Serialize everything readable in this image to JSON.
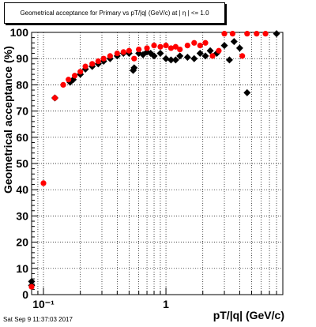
{
  "page": {
    "timestamp": "Sat Sep  9 11:37:03 2017"
  },
  "chart_data": {
    "type": "scatter",
    "title": "Geometrical acceptance for Primary vs pT/|q| (GeV/c) at | η | <= 1.0",
    "xlabel": "pT/|q| (GeV/c)",
    "ylabel": "Geometrical acceptance (%)",
    "xscale": "log",
    "xlim": [
      0.08,
      9.0
    ],
    "ylim": [
      0,
      100
    ],
    "grid": true,
    "y_ticks": [
      "0",
      "10",
      "20",
      "30",
      "40",
      "50",
      "60",
      "70",
      "80",
      "90",
      "100"
    ],
    "x_ticks": [
      {
        "value": 0.1,
        "label": "10⁻¹"
      },
      {
        "value": 1,
        "label": "1"
      }
    ],
    "series": [
      {
        "color": "#000000",
        "marker": "diamond",
        "points": [
          {
            "x": 0.08,
            "y": 5
          },
          {
            "x": 0.08,
            "y": 3.5
          },
          {
            "x": 0.124,
            "y": 75
          },
          {
            "x": 0.165,
            "y": 81
          },
          {
            "x": 0.175,
            "y": 82
          },
          {
            "x": 0.2,
            "y": 84
          },
          {
            "x": 0.22,
            "y": 86
          },
          {
            "x": 0.25,
            "y": 87
          },
          {
            "x": 0.28,
            "y": 88
          },
          {
            "x": 0.31,
            "y": 89
          },
          {
            "x": 0.35,
            "y": 90
          },
          {
            "x": 0.4,
            "y": 91
          },
          {
            "x": 0.45,
            "y": 92
          },
          {
            "x": 0.5,
            "y": 92
          },
          {
            "x": 0.54,
            "y": 85.5
          },
          {
            "x": 0.55,
            "y": 86.5
          },
          {
            "x": 0.6,
            "y": 92
          },
          {
            "x": 0.65,
            "y": 91.5
          },
          {
            "x": 0.7,
            "y": 92.5
          },
          {
            "x": 0.75,
            "y": 92
          },
          {
            "x": 0.8,
            "y": 91
          },
          {
            "x": 0.9,
            "y": 92
          },
          {
            "x": 1.0,
            "y": 90
          },
          {
            "x": 1.1,
            "y": 89.5
          },
          {
            "x": 1.2,
            "y": 89.5
          },
          {
            "x": 1.3,
            "y": 91
          },
          {
            "x": 1.5,
            "y": 90.5
          },
          {
            "x": 1.7,
            "y": 90
          },
          {
            "x": 1.9,
            "y": 92
          },
          {
            "x": 2.1,
            "y": 91
          },
          {
            "x": 2.3,
            "y": 93
          },
          {
            "x": 2.6,
            "y": 92
          },
          {
            "x": 3.0,
            "y": 95
          },
          {
            "x": 3.3,
            "y": 89.5
          },
          {
            "x": 3.6,
            "y": 96.5
          },
          {
            "x": 4.0,
            "y": 94
          },
          {
            "x": 4.6,
            "y": 77
          },
          {
            "x": 8.0,
            "y": 99.5
          }
        ]
      },
      {
        "color": "#ff0000",
        "marker": "circle",
        "points": [
          {
            "x": 0.08,
            "y": 3
          },
          {
            "x": 0.1,
            "y": 42.5
          },
          {
            "x": 0.124,
            "y": 75
          },
          {
            "x": 0.145,
            "y": 80
          },
          {
            "x": 0.16,
            "y": 82
          },
          {
            "x": 0.18,
            "y": 83.5
          },
          {
            "x": 0.2,
            "y": 85
          },
          {
            "x": 0.22,
            "y": 87
          },
          {
            "x": 0.25,
            "y": 88
          },
          {
            "x": 0.28,
            "y": 89
          },
          {
            "x": 0.31,
            "y": 90
          },
          {
            "x": 0.35,
            "y": 91
          },
          {
            "x": 0.4,
            "y": 92
          },
          {
            "x": 0.45,
            "y": 92.5
          },
          {
            "x": 0.5,
            "y": 93
          },
          {
            "x": 0.55,
            "y": 90
          },
          {
            "x": 0.6,
            "y": 93.5
          },
          {
            "x": 0.7,
            "y": 94
          },
          {
            "x": 0.8,
            "y": 95
          },
          {
            "x": 0.9,
            "y": 94.5
          },
          {
            "x": 1.0,
            "y": 95
          },
          {
            "x": 1.1,
            "y": 94
          },
          {
            "x": 1.2,
            "y": 94.5
          },
          {
            "x": 1.3,
            "y": 93.5
          },
          {
            "x": 1.5,
            "y": 95
          },
          {
            "x": 1.7,
            "y": 96
          },
          {
            "x": 1.9,
            "y": 95
          },
          {
            "x": 2.1,
            "y": 96
          },
          {
            "x": 2.4,
            "y": 91
          },
          {
            "x": 2.7,
            "y": 93
          },
          {
            "x": 3.0,
            "y": 99.5
          },
          {
            "x": 3.5,
            "y": 99.5
          },
          {
            "x": 4.2,
            "y": 91
          },
          {
            "x": 4.6,
            "y": 99.5
          },
          {
            "x": 5.5,
            "y": 99.5
          },
          {
            "x": 6.5,
            "y": 99.5
          }
        ]
      }
    ]
  }
}
